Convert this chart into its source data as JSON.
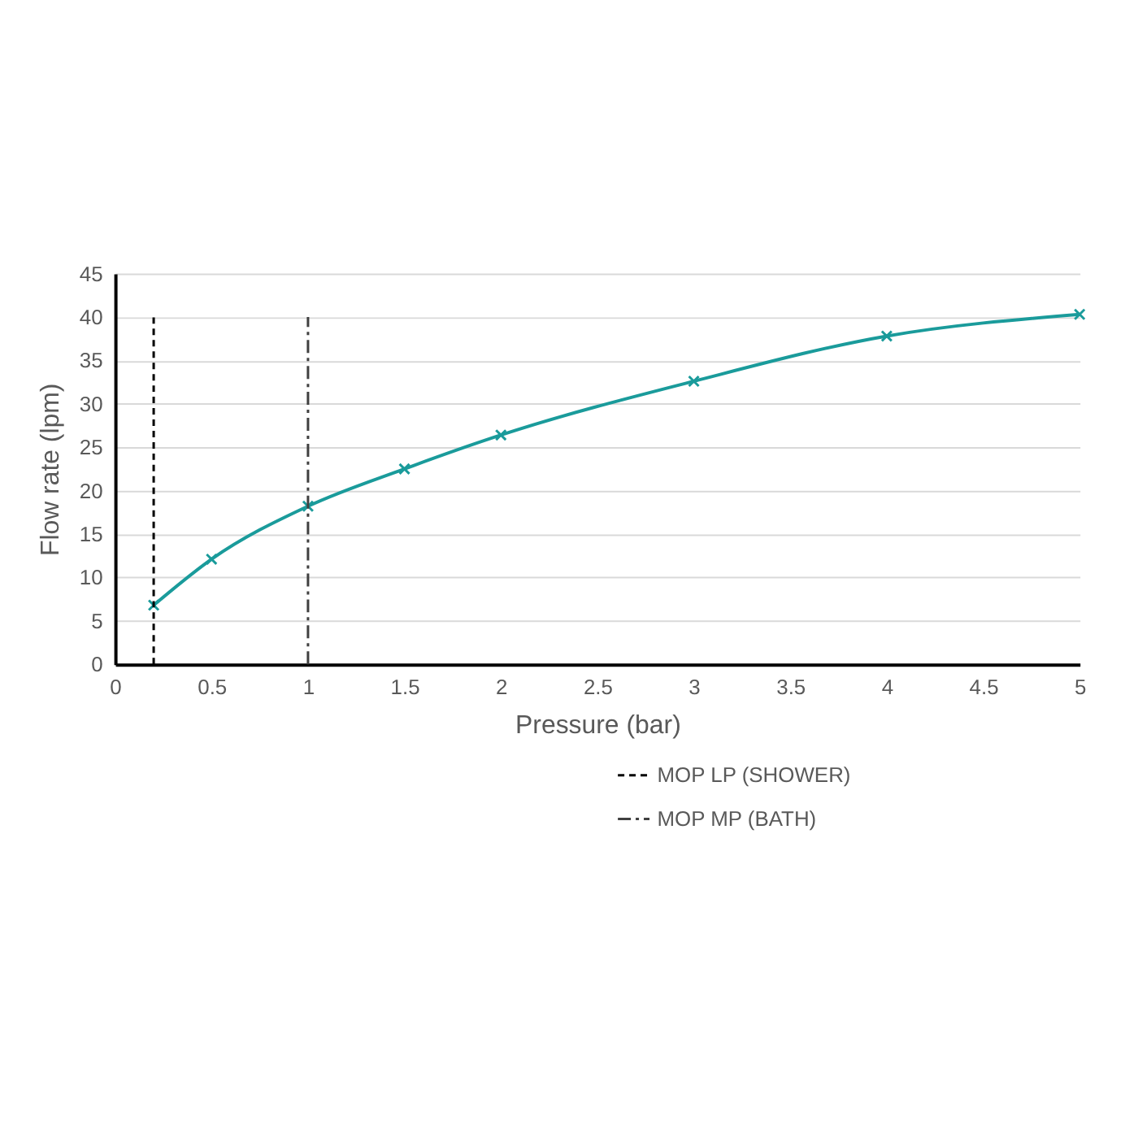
{
  "chart_data": {
    "type": "line",
    "xlabel": "Pressure (bar)",
    "ylabel": "Flow rate (lpm)",
    "xlim": [
      0,
      5
    ],
    "xticks": [
      0,
      0.5,
      1,
      1.5,
      2,
      2.5,
      3,
      3.5,
      4,
      4.5,
      5
    ],
    "ylim": [
      0,
      45
    ],
    "yticks": [
      0,
      5,
      10,
      15,
      20,
      25,
      30,
      35,
      40,
      45
    ],
    "grid": "y",
    "legend": "bottom",
    "line_style": "solid",
    "marker": "none",
    "series": [
      {
        "color": "#1a9b9b",
        "marker": "cross",
        "x": [
          0.2,
          0.5,
          1,
          1.5,
          2,
          3,
          4,
          5
        ],
        "values": [
          6.8,
          12.1,
          18.2,
          22.5,
          26.4,
          32.6,
          37.8,
          40.3
        ]
      },
      {
        "name": "MOP LP (SHOWER)",
        "color": "#000000",
        "line_style": "dashed",
        "x": [
          0.2,
          0.2
        ],
        "values": [
          0,
          40
        ]
      },
      {
        "name": "MOP MP (BATH)",
        "color": "#404040",
        "line_style": "dashdot",
        "x": [
          1,
          1
        ],
        "values": [
          0,
          40
        ]
      }
    ]
  }
}
